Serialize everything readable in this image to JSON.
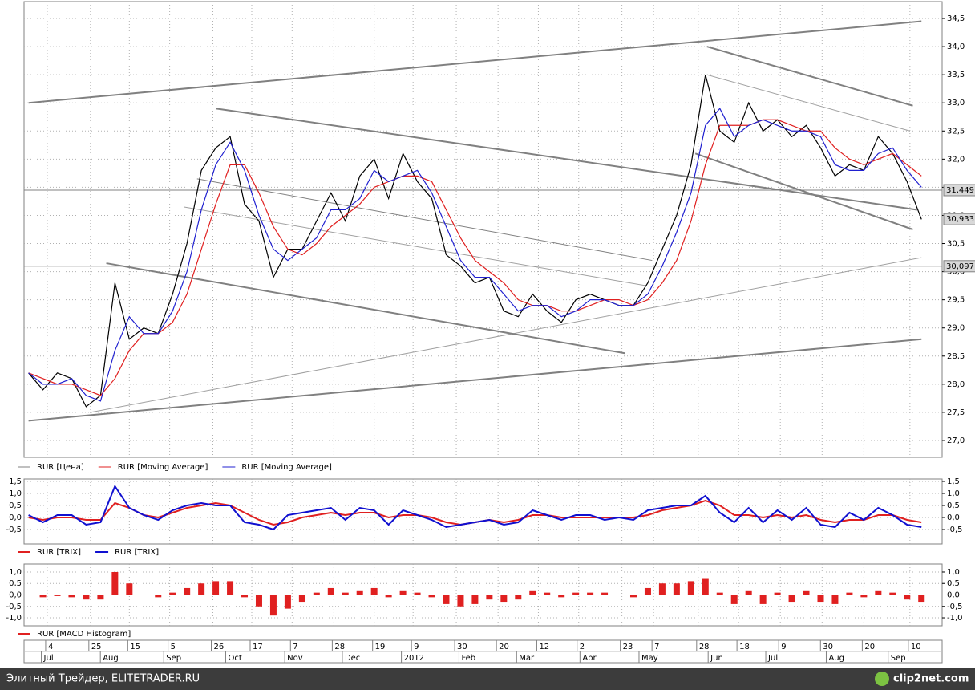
{
  "chart_data": [
    {
      "type": "line",
      "xlim": [
        -0.2,
        62.6
      ],
      "x": [
        0,
        1,
        2,
        3,
        4,
        5,
        6,
        7,
        8,
        9,
        10,
        11,
        12,
        13,
        14,
        15,
        16,
        17,
        18,
        19,
        20,
        21,
        22,
        23,
        24,
        25,
        26,
        27,
        28,
        29,
        30,
        31,
        32,
        33,
        34,
        35,
        36,
        37,
        38,
        39,
        40,
        41,
        42,
        43,
        44,
        45,
        46,
        47,
        48,
        49,
        50,
        51,
        52,
        53,
        54,
        55,
        56,
        57,
        58,
        59,
        60,
        61,
        62
      ],
      "xticks": [
        {
          "value": 1.3,
          "label": "4"
        },
        {
          "value": 4.3,
          "label": "25"
        },
        {
          "value": 7,
          "label": "15"
        },
        {
          "value": 9.8,
          "label": "5"
        },
        {
          "value": 12.8,
          "label": "26"
        },
        {
          "value": 15.5,
          "label": "17"
        },
        {
          "value": 18.3,
          "label": "7"
        },
        {
          "value": 21.2,
          "label": "28"
        },
        {
          "value": 24,
          "label": "19"
        },
        {
          "value": 26.7,
          "label": "9"
        },
        {
          "value": 29.7,
          "label": "30"
        },
        {
          "value": 32.6,
          "label": "20"
        },
        {
          "value": 35.4,
          "label": "12"
        },
        {
          "value": 38.2,
          "label": "2"
        },
        {
          "value": 41.2,
          "label": "23"
        },
        {
          "value": 43.4,
          "label": "7"
        },
        {
          "value": 46.5,
          "label": "28"
        },
        {
          "value": 49.3,
          "label": "18"
        },
        {
          "value": 52.2,
          "label": "9"
        },
        {
          "value": 55.1,
          "label": "30"
        },
        {
          "value": 58,
          "label": "20"
        },
        {
          "value": 61.2,
          "label": "10"
        }
      ],
      "month_ticks": [
        {
          "value": 1,
          "label": "Jul"
        },
        {
          "value": 5.1,
          "label": "Aug"
        },
        {
          "value": 9.5,
          "label": "Sep"
        },
        {
          "value": 13.8,
          "label": "Oct"
        },
        {
          "value": 17.9,
          "label": "Nov"
        },
        {
          "value": 21.9,
          "label": "Dec"
        },
        {
          "value": 26,
          "label": "2012"
        },
        {
          "value": 30,
          "label": "Feb"
        },
        {
          "value": 34,
          "label": "Mar"
        },
        {
          "value": 38.4,
          "label": "Apr"
        },
        {
          "value": 42.5,
          "label": "May"
        },
        {
          "value": 47.3,
          "label": "Jun"
        },
        {
          "value": 51.3,
          "label": "Jul"
        },
        {
          "value": 55.5,
          "label": "Aug"
        },
        {
          "value": 59.8,
          "label": "Sep"
        }
      ],
      "ylim": [
        26.7,
        34.8
      ],
      "yticks": [
        {
          "value": 27,
          "label": "27,0"
        },
        {
          "value": 27.5,
          "label": "27,5"
        },
        {
          "value": 28,
          "label": "28,0"
        },
        {
          "value": 28.5,
          "label": "28,5"
        },
        {
          "value": 29,
          "label": "29,0"
        },
        {
          "value": 29.5,
          "label": "29,5"
        },
        {
          "value": 30,
          "label": "30,0"
        },
        {
          "value": 30.5,
          "label": "30,5"
        },
        {
          "value": 31,
          "label": "31,0"
        },
        {
          "value": 31.5,
          "label": "31,5"
        },
        {
          "value": 32,
          "label": "32,0"
        },
        {
          "value": 32.5,
          "label": "32,5"
        },
        {
          "value": 33,
          "label": "33,0"
        },
        {
          "value": 33.5,
          "label": "33,5"
        },
        {
          "value": 34,
          "label": "34,0"
        },
        {
          "value": 34.5,
          "label": "34,5"
        }
      ],
      "grid": true,
      "series": [
        {
          "name": "RUR [Цена]",
          "color": "#000000",
          "legend_color": "#808080",
          "values": [
            28.2,
            27.9,
            28.2,
            28.1,
            27.6,
            27.8,
            29.8,
            28.8,
            29.0,
            28.9,
            29.6,
            30.5,
            31.8,
            32.2,
            32.4,
            31.2,
            30.9,
            29.9,
            30.4,
            30.4,
            30.9,
            31.4,
            30.9,
            31.7,
            32.0,
            31.3,
            32.1,
            31.6,
            31.3,
            30.3,
            30.1,
            29.8,
            29.9,
            29.3,
            29.2,
            29.6,
            29.3,
            29.1,
            29.5,
            29.6,
            29.5,
            29.4,
            29.4,
            29.8,
            30.4,
            31.0,
            31.9,
            33.5,
            32.5,
            32.3,
            33.0,
            32.5,
            32.7,
            32.4,
            32.6,
            32.2,
            31.7,
            31.9,
            31.8,
            32.4,
            32.1,
            31.6,
            30.93
          ]
        },
        {
          "name": "RUR [Moving Average]",
          "color": "#e02020",
          "values": [
            28.2,
            28.1,
            28.0,
            28.0,
            27.9,
            27.8,
            28.1,
            28.6,
            28.9,
            28.9,
            29.1,
            29.6,
            30.4,
            31.2,
            31.9,
            31.9,
            31.4,
            30.8,
            30.4,
            30.3,
            30.5,
            30.8,
            31.0,
            31.2,
            31.5,
            31.6,
            31.7,
            31.7,
            31.6,
            31.1,
            30.6,
            30.2,
            30.0,
            29.8,
            29.5,
            29.4,
            29.4,
            29.3,
            29.3,
            29.4,
            29.5,
            29.5,
            29.4,
            29.5,
            29.8,
            30.2,
            30.9,
            31.9,
            32.6,
            32.6,
            32.6,
            32.7,
            32.7,
            32.6,
            32.5,
            32.5,
            32.2,
            32.0,
            31.9,
            32.0,
            32.1,
            31.9,
            31.7
          ]
        },
        {
          "name": "RUR [Moving Average]",
          "color": "#2020d0",
          "values": [
            28.2,
            28.0,
            28.0,
            28.1,
            27.8,
            27.7,
            28.6,
            29.2,
            28.9,
            28.9,
            29.3,
            30.0,
            31.1,
            31.9,
            32.3,
            31.8,
            31.0,
            30.4,
            30.2,
            30.4,
            30.6,
            31.1,
            31.1,
            31.3,
            31.8,
            31.6,
            31.7,
            31.8,
            31.4,
            30.8,
            30.2,
            29.9,
            29.9,
            29.6,
            29.3,
            29.4,
            29.4,
            29.2,
            29.3,
            29.5,
            29.5,
            29.4,
            29.4,
            29.6,
            30.1,
            30.7,
            31.4,
            32.6,
            32.9,
            32.4,
            32.6,
            32.7,
            32.6,
            32.5,
            32.5,
            32.4,
            31.9,
            31.8,
            31.8,
            32.1,
            32.2,
            31.8,
            31.5
          ]
        }
      ],
      "trendlines": [
        {
          "x": [
            0,
            62
          ],
          "y": [
            33.0,
            34.45
          ],
          "color": "#808080",
          "width": 2
        },
        {
          "x": [
            0,
            62
          ],
          "y": [
            27.35,
            28.8
          ],
          "color": "#808080",
          "width": 2
        },
        {
          "x": [
            4.3,
            62
          ],
          "y": [
            27.5,
            30.25
          ],
          "color": "#a0a0a0",
          "width": 1
        },
        {
          "x": [
            5.4,
            41.4
          ],
          "y": [
            30.15,
            28.55
          ],
          "color": "#808080",
          "width": 2
        },
        {
          "x": [
            13,
            61.7
          ],
          "y": [
            32.9,
            31.1
          ],
          "color": "#808080",
          "width": 2
        },
        {
          "x": [
            10.8,
            42.9
          ],
          "y": [
            31.15,
            29.75
          ],
          "color": "#a0a0a0",
          "width": 1
        },
        {
          "x": [
            11.7,
            43.3
          ],
          "y": [
            31.65,
            30.2
          ],
          "color": "#808080",
          "width": 1
        },
        {
          "x": [
            47.1,
            61.4
          ],
          "y": [
            34.0,
            32.95
          ],
          "color": "#808080",
          "width": 2
        },
        {
          "x": [
            46.3,
            61.4
          ],
          "y": [
            32.1,
            30.75
          ],
          "color": "#808080",
          "width": 2
        },
        {
          "x": [
            47.1,
            61.2
          ],
          "y": [
            33.5,
            32.5
          ],
          "color": "#a0a0a0",
          "width": 1
        }
      ],
      "levels": [
        {
          "value": 31.449,
          "label": "31,449"
        },
        {
          "value": 30.097,
          "label": "30,097"
        }
      ],
      "last_label": {
        "value": 30.933,
        "label": "30,933"
      }
    },
    {
      "type": "line",
      "ylim": [
        -1.1,
        1.6
      ],
      "yticks": [
        {
          "value": -0.5,
          "label": "-0,5"
        },
        {
          "value": 0,
          "label": "0,0"
        },
        {
          "value": 0.5,
          "label": "0,5"
        },
        {
          "value": 1,
          "label": "1,0"
        },
        {
          "value": 1.5,
          "label": "1,5"
        }
      ],
      "grid": true,
      "series": [
        {
          "name": "RUR [TRIX]",
          "color": "#e02020",
          "values": [
            0.0,
            -0.1,
            0.0,
            0.0,
            -0.1,
            -0.1,
            0.6,
            0.4,
            0.1,
            0.0,
            0.2,
            0.4,
            0.5,
            0.6,
            0.5,
            0.2,
            -0.1,
            -0.3,
            -0.2,
            0.0,
            0.1,
            0.2,
            0.1,
            0.2,
            0.2,
            0.0,
            0.1,
            0.1,
            0.0,
            -0.2,
            -0.3,
            -0.2,
            -0.1,
            -0.2,
            -0.1,
            0.1,
            0.1,
            0.0,
            0.0,
            0.0,
            0.0,
            0.0,
            0.0,
            0.1,
            0.3,
            0.4,
            0.5,
            0.7,
            0.5,
            0.1,
            0.1,
            0.0,
            0.1,
            0.0,
            0.1,
            -0.1,
            -0.2,
            -0.1,
            -0.1,
            0.1,
            0.1,
            -0.1,
            -0.2
          ]
        },
        {
          "name": "RUR [TRIX]",
          "color": "#1010d0",
          "values": [
            0.1,
            -0.2,
            0.1,
            0.1,
            -0.3,
            -0.2,
            1.3,
            0.4,
            0.1,
            -0.1,
            0.3,
            0.5,
            0.6,
            0.5,
            0.5,
            -0.2,
            -0.3,
            -0.5,
            0.1,
            0.2,
            0.3,
            0.4,
            -0.1,
            0.4,
            0.3,
            -0.3,
            0.3,
            0.1,
            -0.1,
            -0.4,
            -0.3,
            -0.2,
            -0.1,
            -0.3,
            -0.2,
            0.3,
            0.1,
            -0.1,
            0.1,
            0.1,
            -0.1,
            0.0,
            -0.1,
            0.3,
            0.4,
            0.5,
            0.5,
            0.9,
            0.2,
            -0.2,
            0.4,
            -0.2,
            0.3,
            -0.1,
            0.4,
            -0.3,
            -0.4,
            0.2,
            -0.1,
            0.4,
            0.1,
            -0.3,
            -0.4
          ]
        }
      ]
    },
    {
      "type": "histogram",
      "ylim": [
        -1.35,
        1.35
      ],
      "yticks": [
        {
          "value": -1,
          "label": "-1,0"
        },
        {
          "value": -0.5,
          "label": "-0,5"
        },
        {
          "value": 0,
          "label": "0,0"
        },
        {
          "value": 0.5,
          "label": "0,5"
        },
        {
          "value": 1,
          "label": "1,0"
        }
      ],
      "grid": true,
      "series": [
        {
          "name": "RUR [MACD Histogram]",
          "color": "#e02020",
          "values": [
            0.0,
            -0.1,
            -0.05,
            -0.1,
            -0.2,
            -0.2,
            1.0,
            0.5,
            0.0,
            -0.1,
            0.1,
            0.3,
            0.5,
            0.6,
            0.6,
            -0.1,
            -0.5,
            -0.9,
            -0.6,
            -0.3,
            0.1,
            0.3,
            0.1,
            0.2,
            0.3,
            -0.1,
            0.2,
            0.1,
            -0.1,
            -0.4,
            -0.5,
            -0.4,
            -0.2,
            -0.3,
            -0.2,
            0.2,
            0.1,
            -0.1,
            0.1,
            0.1,
            0.1,
            0.0,
            -0.1,
            0.3,
            0.5,
            0.5,
            0.6,
            0.7,
            0.1,
            -0.4,
            0.2,
            -0.4,
            0.1,
            -0.3,
            0.2,
            -0.3,
            -0.4,
            0.1,
            -0.1,
            0.2,
            0.1,
            -0.2,
            -0.3
          ]
        }
      ]
    }
  ],
  "footer": {
    "text": "Элитный Трейдер, ELITETRADER.RU",
    "logo": "clip2net.com"
  }
}
